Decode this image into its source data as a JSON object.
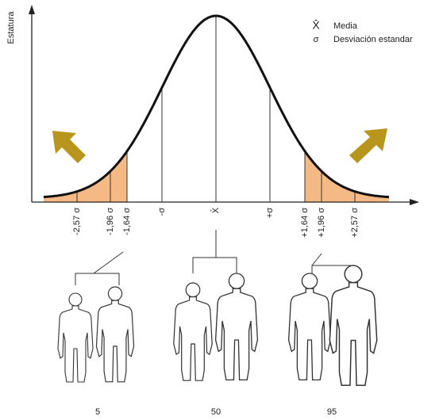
{
  "axis": {
    "y_label": "Estatura"
  },
  "legend": [
    {
      "symbol": "X̄",
      "label": "Media"
    },
    {
      "symbol": "σ",
      "label": "Desviación estandar"
    }
  ],
  "ticks": [
    "-2,57 σ",
    "-1,96 σ",
    "-1,64 σ",
    "-σ",
    "X̄",
    "+σ",
    "+1,64 σ",
    "+1,96 σ",
    "+2,57 σ"
  ],
  "percentiles": [
    "5",
    "50",
    "95"
  ]
}
